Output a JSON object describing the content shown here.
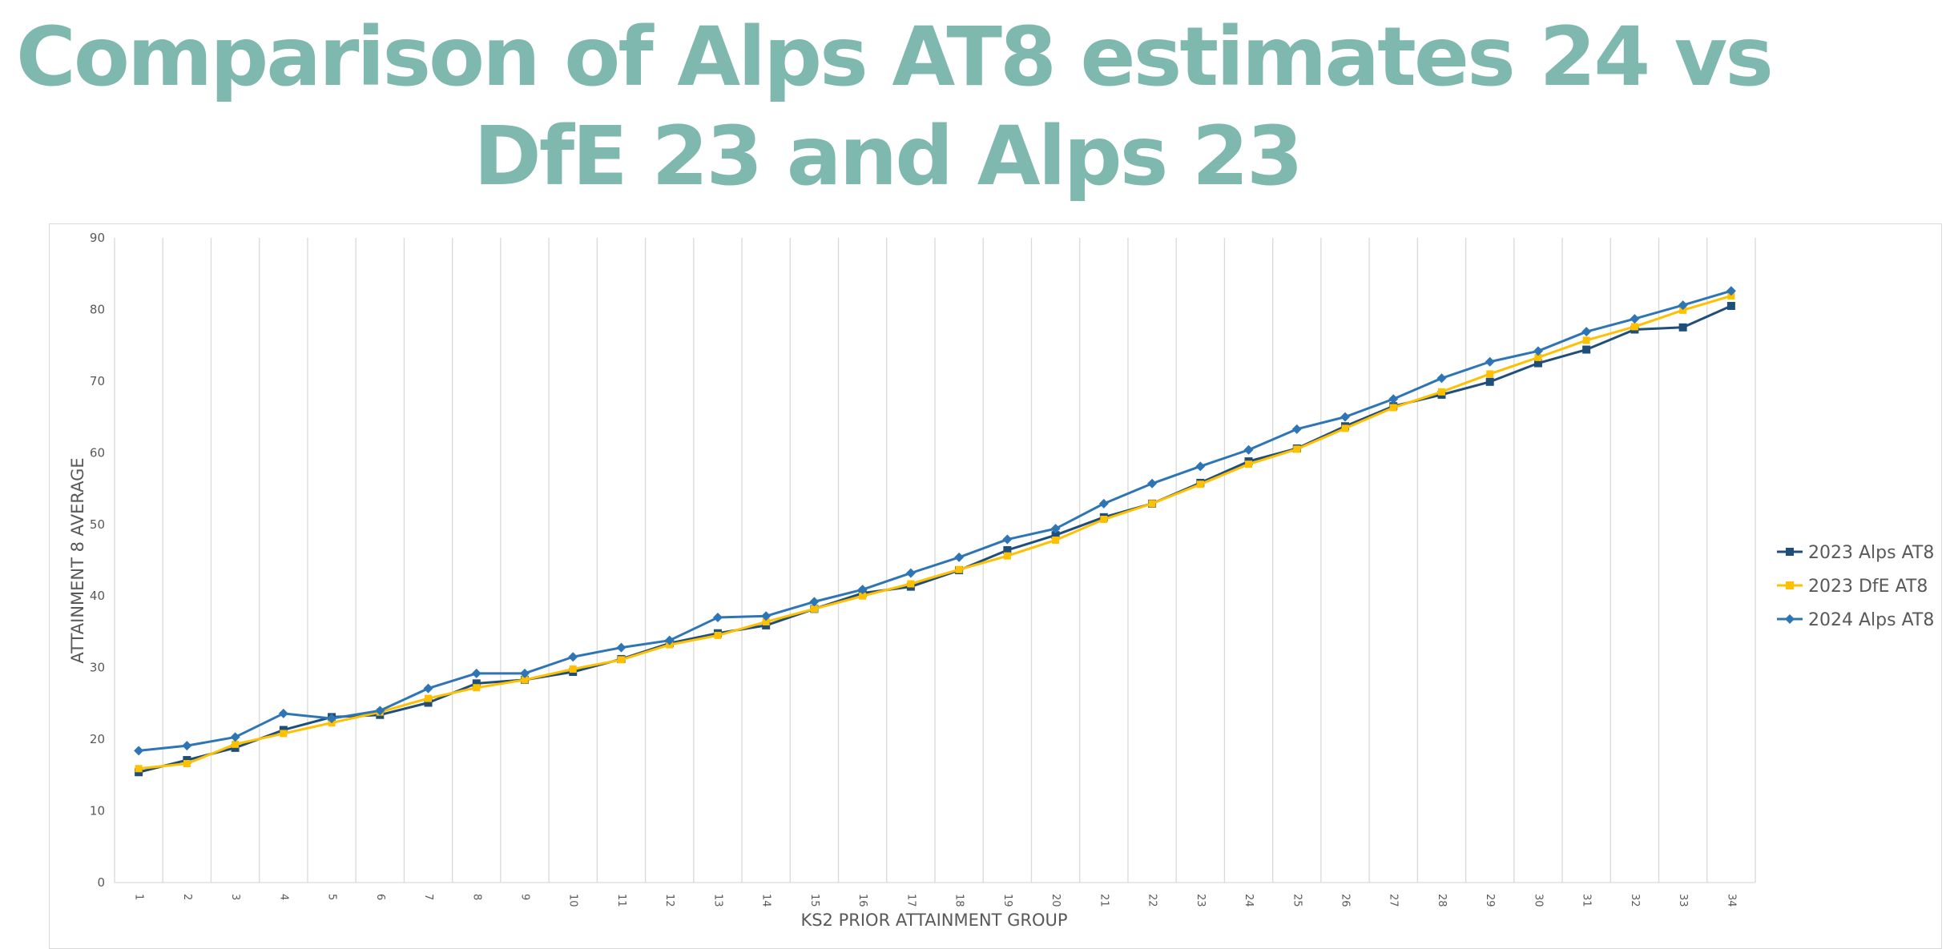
{
  "title": {
    "line1": "Comparison of Alps AT8 estimates 24 vs",
    "line2": "DfE 23 and Alps 23"
  },
  "chart_data": {
    "type": "line",
    "xlabel": "KS2 PRIOR ATTAINMENT GROUP",
    "ylabel": "ATTAINMENT 8 AVERAGE",
    "ylim": [
      0,
      90
    ],
    "yticks": [
      0,
      10,
      20,
      30,
      40,
      50,
      60,
      70,
      80,
      90
    ],
    "grid": "vertical gridlines",
    "legend_position": "right",
    "categories": [
      "1",
      "2",
      "3",
      "4",
      "5",
      "6",
      "7",
      "8",
      "9",
      "10",
      "11",
      "12",
      "13",
      "14",
      "15",
      "16",
      "17",
      "18",
      "19",
      "20",
      "21",
      "22",
      "23",
      "24",
      "25",
      "26",
      "27",
      "28",
      "29",
      "30",
      "31",
      "32",
      "33",
      "34"
    ],
    "series": [
      {
        "name": "2023 Alps AT8",
        "color": "#1f4e79",
        "marker": "square",
        "values": [
          15.4,
          17.1,
          18.8,
          21.3,
          23.1,
          23.4,
          25.1,
          27.8,
          28.3,
          29.4,
          31.2,
          33.4,
          34.8,
          35.9,
          38.2,
          40.4,
          41.3,
          43.6,
          46.4,
          48.5,
          51.0,
          52.9,
          55.8,
          58.8,
          60.6,
          63.7,
          66.5,
          68.1,
          69.9,
          72.5,
          74.4,
          77.2,
          77.5,
          80.5
        ]
      },
      {
        "name": "2023 DfE AT8",
        "color": "#ffc000",
        "marker": "square",
        "values": [
          15.9,
          16.6,
          19.3,
          20.8,
          22.3,
          23.8,
          25.7,
          27.2,
          28.3,
          29.8,
          31.1,
          33.2,
          34.5,
          36.4,
          38.2,
          40.0,
          41.7,
          43.7,
          45.6,
          47.8,
          50.7,
          52.9,
          55.6,
          58.4,
          60.5,
          63.4,
          66.3,
          68.5,
          71.0,
          73.3,
          75.7,
          77.6,
          79.9,
          81.9
        ]
      },
      {
        "name": "2024 Alps AT8",
        "color": "#2e75b6",
        "marker": "diamond",
        "values": [
          18.4,
          19.1,
          20.3,
          23.6,
          22.9,
          24.0,
          27.1,
          29.2,
          29.2,
          31.5,
          32.8,
          33.8,
          37.0,
          37.2,
          39.2,
          40.9,
          43.2,
          45.4,
          47.9,
          49.4,
          52.9,
          55.7,
          58.1,
          60.4,
          63.3,
          65.0,
          67.5,
          70.4,
          72.7,
          74.2,
          76.9,
          78.7,
          80.6,
          82.6
        ]
      }
    ]
  }
}
